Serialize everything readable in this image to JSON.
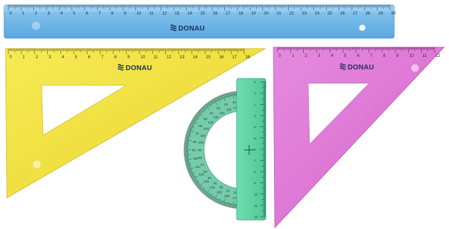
{
  "brand": {
    "name": "DONAU",
    "logo_icon": "donau-wave-logo-icon"
  },
  "rulers": [
    {
      "id": "blue-ruler",
      "color": "#6bb6e8",
      "scale_max": 30,
      "numbers": [
        "0",
        "1",
        "2",
        "3",
        "4",
        "5",
        "6",
        "7",
        "8",
        "9",
        "10",
        "11",
        "12",
        "13",
        "14",
        "15",
        "16",
        "17",
        "18",
        "19",
        "20",
        "21",
        "22",
        "23",
        "24",
        "25",
        "26",
        "27",
        "28",
        "29",
        "30"
      ]
    }
  ],
  "set_squares": [
    {
      "id": "yellow-set-square",
      "color": "#f2e23a",
      "numbers": [
        "0",
        "1",
        "2",
        "3",
        "4",
        "5",
        "6",
        "7",
        "8",
        "9",
        "10",
        "11",
        "12",
        "13",
        "14",
        "15",
        "16",
        "17",
        "18"
      ]
    },
    {
      "id": "pink-set-square",
      "color": "#e07ad4",
      "numbers": [
        "0",
        "1",
        "2",
        "3",
        "4",
        "5",
        "6",
        "7",
        "8",
        "9",
        "10",
        "11",
        "12"
      ]
    }
  ],
  "protractor": {
    "color": "#5fd4a5",
    "degree_labels": [
      "0",
      "10",
      "20",
      "30",
      "40",
      "50",
      "60",
      "70",
      "80",
      "90",
      "100",
      "110",
      "120",
      "130",
      "140",
      "150",
      "160",
      "170",
      "180"
    ],
    "side_scale": [
      "0",
      "1",
      "2",
      "3",
      "4",
      "5",
      "6",
      "7",
      "8",
      "9",
      "10",
      "11",
      "12"
    ]
  }
}
